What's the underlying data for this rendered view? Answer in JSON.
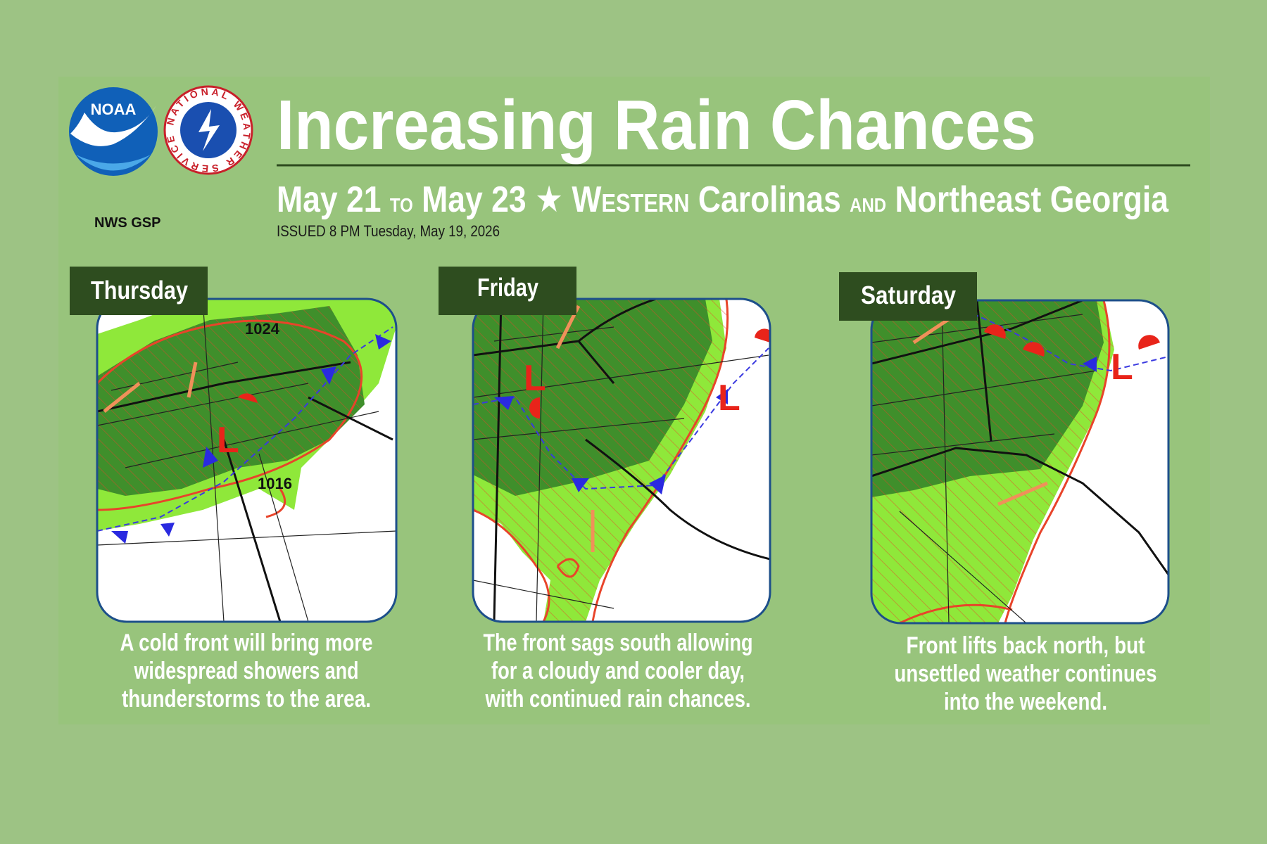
{
  "logos": {
    "noaa": "NOAA",
    "nws": "NATIONAL WEATHER SERVICE"
  },
  "office": "NWS GSP",
  "header": {
    "title": "Increasing Rain Chances",
    "subtitle": [
      "May 21",
      "to",
      "May 23",
      "★",
      "Western",
      "Carolinas",
      "and",
      "Northeast Georgia"
    ],
    "issued": "ISSUED 8 PM Tuesday, May 19, 2026"
  },
  "panels": [
    {
      "day": "Thursday",
      "map_labels": [
        "1024",
        "1016",
        "L"
      ],
      "caption": [
        "A cold front will bring more",
        "widespread showers and",
        "thunderstorms to the area."
      ]
    },
    {
      "day": "Friday",
      "map_labels": [
        "L",
        "L"
      ],
      "caption": [
        "The front sags south allowing",
        "for a cloudy and cooler day,",
        "with continued rain chances."
      ]
    },
    {
      "day": "Saturday",
      "map_labels": [
        "L"
      ],
      "caption": [
        "Front lifts back north, but",
        "unsettled weather continues",
        "into the weekend."
      ]
    }
  ]
}
